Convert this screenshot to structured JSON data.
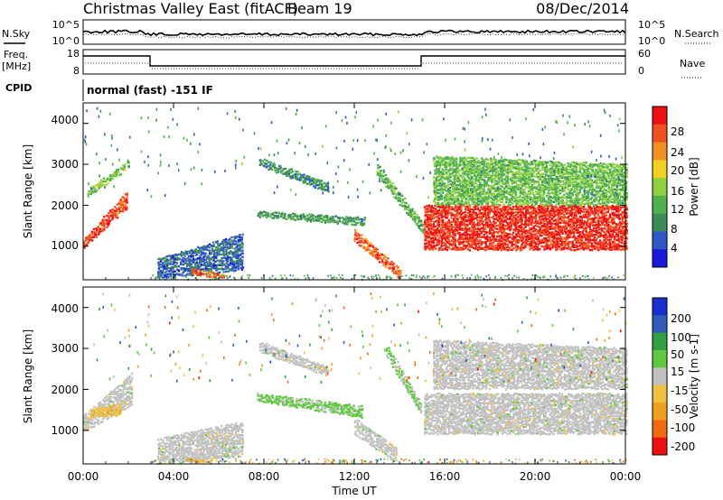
{
  "header": {
    "title": "Christmas Valley East (fitACF)",
    "beam": "Beam 19",
    "date": "08/Dec/2014"
  },
  "strips": {
    "nsky_label": "N.Sky",
    "nsearch_label": "N.Search",
    "noise_ticks": [
      "10^5",
      "10^0"
    ],
    "freq_label_1": "Freq.",
    "freq_label_2": "[MHz]",
    "freq_ticks": [
      "18",
      "8"
    ],
    "nave_label": "Nave",
    "nave_ticks": [
      "60",
      "0"
    ],
    "cpid_label": "CPID",
    "cpid_text": "normal (fast) -151 IF"
  },
  "xaxis": {
    "label": "Time UT",
    "ticks": [
      "00:00",
      "04:00",
      "08:00",
      "12:00",
      "16:00",
      "20:00",
      "00:00"
    ]
  },
  "power_panel": {
    "ylabel": "Slant Range [km]",
    "yticks": [
      "4000",
      "3000",
      "2000",
      "1000"
    ],
    "colorbar_label": "Power [dB]",
    "colorbar_ticks": [
      "28",
      "24",
      "20",
      "16",
      "12",
      "8",
      "4"
    ]
  },
  "velocity_panel": {
    "ylabel": "Slant Range [km]",
    "yticks": [
      "4000",
      "3000",
      "2000",
      "1000"
    ],
    "colorbar_label": "Velocity [m s-1]",
    "colorbar_ticks": [
      "200",
      "100",
      "50",
      "15",
      "-15",
      "-50",
      "-100",
      "-200"
    ]
  },
  "chart_data": [
    {
      "type": "heatmap",
      "title": "Power [dB]",
      "xlabel": "Time UT",
      "ylabel": "Slant Range [km]",
      "xlim": [
        0,
        24
      ],
      "ylim": [
        180,
        4500
      ],
      "x_ticks_hours": [
        0,
        4,
        8,
        12,
        16,
        20,
        24
      ],
      "y_ticks": [
        1000,
        2000,
        3000,
        4000
      ],
      "colorscale": {
        "range": [
          0,
          30
        ],
        "ticks": [
          4,
          8,
          12,
          16,
          20,
          24,
          28
        ],
        "colors": [
          "#1a1ad8",
          "#2e58c8",
          "#3f8a5a",
          "#4fb050",
          "#8fd040",
          "#f0d020",
          "#f09020",
          "#f05020",
          "#ee1010"
        ]
      },
      "regions": [
        {
          "t": [
            0.0,
            1.9
          ],
          "range_start": [
            950,
            1150
          ],
          "range_end": [
            1900,
            2350
          ],
          "power_db": 26
        },
        {
          "t": [
            0.2,
            2.0
          ],
          "range_start": [
            2200,
            2400
          ],
          "range_end": [
            2900,
            3100
          ],
          "power_db": 14
        },
        {
          "t": [
            3.3,
            7.0
          ],
          "range_start": [
            200,
            700
          ],
          "range_end": [
            400,
            1300
          ],
          "power_db": 6
        },
        {
          "t": [
            4.8,
            6.3
          ],
          "range_start": [
            450,
            300
          ],
          "range_end": [
            300,
            180
          ],
          "power_db": 24
        },
        {
          "t": [
            7.7,
            12.4
          ],
          "range_start": [
            1700,
            1850
          ],
          "range_end": [
            1500,
            1700
          ],
          "power_db": 10
        },
        {
          "t": [
            7.8,
            10.8
          ],
          "range_start": [
            2950,
            3150
          ],
          "range_end": [
            2300,
            2550
          ],
          "power_db": 9
        },
        {
          "t": [
            12.0,
            14.0
          ],
          "range_start": [
            1100,
            1400
          ],
          "range_end": [
            200,
            450
          ],
          "power_db": 24
        },
        {
          "t": [
            13.0,
            15.0
          ],
          "range_start": [
            2700,
            3000
          ],
          "range_end": [
            1300,
            1600
          ],
          "power_db": 12
        },
        {
          "t": [
            15.1,
            24.0
          ],
          "range_start": [
            900,
            2000
          ],
          "range_end": [
            900,
            2000
          ],
          "power_db": 27
        },
        {
          "t": [
            15.5,
            24.0
          ],
          "range_start": [
            2000,
            3200
          ],
          "range_end": [
            2000,
            3000
          ],
          "power_db": 13
        }
      ]
    },
    {
      "type": "heatmap",
      "title": "Velocity [m s-1]",
      "xlabel": "Time UT",
      "ylabel": "Slant Range [km]",
      "xlim": [
        0,
        24
      ],
      "ylim": [
        180,
        4500
      ],
      "x_ticks_hours": [
        0,
        4,
        8,
        12,
        16,
        20,
        24
      ],
      "y_ticks": [
        1000,
        2000,
        3000,
        4000
      ],
      "colorscale": {
        "range": [
          -250,
          250
        ],
        "ticks": [
          200,
          100,
          50,
          15,
          -15,
          -50,
          -100,
          -200
        ],
        "colors": [
          "#ee1010",
          "#f06a10",
          "#f0a020",
          "#f0c040",
          "#c0c0c0",
          "#60c840",
          "#30a040",
          "#2e5cb8",
          "#1a2fd0"
        ]
      },
      "regions": [
        {
          "t": [
            0.0,
            2.1
          ],
          "range_start": [
            950,
            1350
          ],
          "range_end": [
            1600,
            2400
          ],
          "velocity": 0
        },
        {
          "t": [
            0.3,
            1.6
          ],
          "range_start": [
            1300,
            1500
          ],
          "range_end": [
            1350,
            1650
          ],
          "velocity": -60
        },
        {
          "t": [
            3.3,
            7.0
          ],
          "range_start": [
            200,
            800
          ],
          "range_end": [
            350,
            1200
          ],
          "velocity": 0
        },
        {
          "t": [
            4.6,
            6.0
          ],
          "range_start": [
            300,
            250
          ],
          "range_end": [
            200,
            180
          ],
          "velocity": -80
        },
        {
          "t": [
            7.7,
            12.3
          ],
          "range_start": [
            1700,
            1900
          ],
          "range_end": [
            1300,
            1600
          ],
          "velocity": 45
        },
        {
          "t": [
            7.8,
            10.8
          ],
          "range_start": [
            2900,
            3150
          ],
          "range_end": [
            2300,
            2550
          ],
          "velocity": 0
        },
        {
          "t": [
            12.0,
            13.8
          ],
          "range_start": [
            900,
            1300
          ],
          "range_end": [
            200,
            600
          ],
          "velocity": 0
        },
        {
          "t": [
            13.4,
            14.9
          ],
          "range_start": [
            2800,
            3100
          ],
          "range_end": [
            1400,
            1700
          ],
          "velocity": 35
        },
        {
          "t": [
            15.1,
            24.0
          ],
          "range_start": [
            900,
            1900
          ],
          "range_end": [
            900,
            1900
          ],
          "velocity": 0
        },
        {
          "t": [
            15.5,
            24.0
          ],
          "range_start": [
            2000,
            3200
          ],
          "range_end": [
            2000,
            3000
          ],
          "velocity": 0
        }
      ]
    }
  ]
}
